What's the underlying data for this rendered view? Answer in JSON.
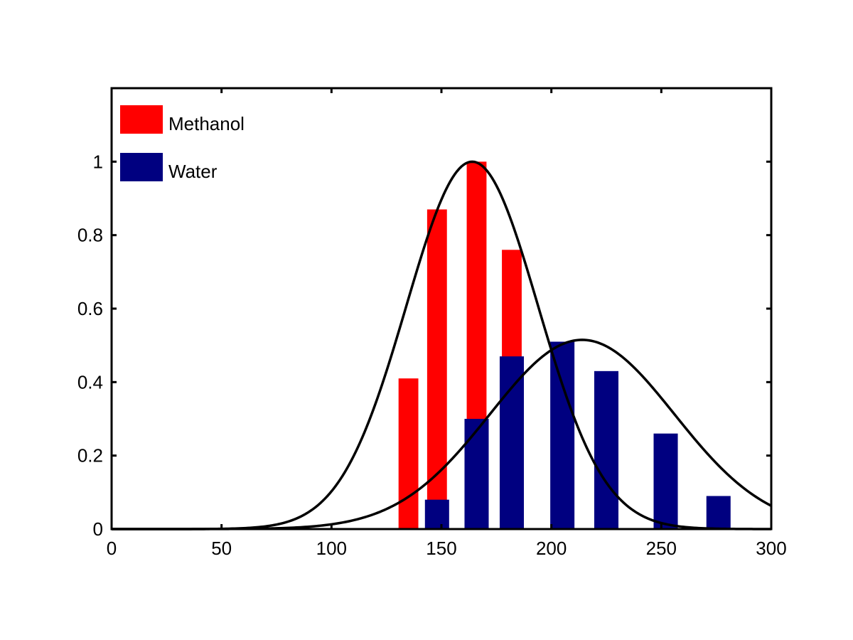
{
  "chart_data": {
    "type": "bar",
    "title": "",
    "xlabel": "",
    "ylabel": "",
    "xlim": [
      0,
      300
    ],
    "ylim": [
      0,
      1.2
    ],
    "x_ticks": [
      0,
      50,
      100,
      150,
      200,
      250,
      300
    ],
    "y_ticks": [
      0,
      0.2,
      0.4,
      0.6,
      0.8,
      1
    ],
    "x_tick_labels": [
      "0",
      "50",
      "100",
      "150",
      "200",
      "250",
      "300"
    ],
    "y_tick_labels": [
      "0",
      "0.2",
      "0.4",
      "0.6",
      "0.8",
      "1"
    ],
    "grid": false,
    "legend_position": "top-left",
    "legend": [
      {
        "label": "Methanol",
        "color": "#ff0000"
      },
      {
        "label": "Water",
        "color": "#000080"
      }
    ],
    "series": [
      {
        "name": "Methanol",
        "color": "#ff0000",
        "bars": [
          {
            "x": 135,
            "width": 9,
            "value": 0.41
          },
          {
            "x": 148,
            "width": 9,
            "value": 0.87
          },
          {
            "x": 166,
            "width": 9,
            "value": 1.0
          },
          {
            "x": 182,
            "width": 9,
            "value": 0.76
          }
        ]
      },
      {
        "name": "Water",
        "color": "#000080",
        "bars": [
          {
            "x": 148,
            "width": 11,
            "value": 0.08
          },
          {
            "x": 166,
            "width": 11,
            "value": 0.3
          },
          {
            "x": 182,
            "width": 11,
            "value": 0.47
          },
          {
            "x": 205,
            "width": 11,
            "value": 0.51
          },
          {
            "x": 225,
            "width": 11,
            "value": 0.43
          },
          {
            "x": 252,
            "width": 11,
            "value": 0.26
          },
          {
            "x": 276,
            "width": 11,
            "value": 0.09
          }
        ]
      }
    ],
    "curves": [
      {
        "series": "Methanol",
        "type": "gaussian",
        "mu": 164,
        "sigma": 30,
        "peak": 1.0,
        "color": "#000000"
      },
      {
        "series": "Water",
        "type": "gaussian",
        "mu": 214,
        "sigma": 42,
        "peak": 0.515,
        "color": "#000000"
      }
    ]
  }
}
